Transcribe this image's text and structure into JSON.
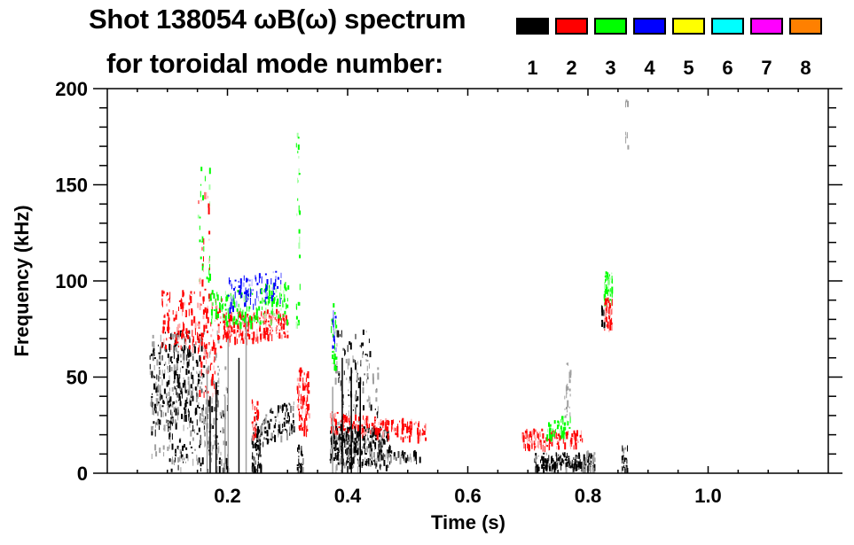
{
  "chart_data": {
    "type": "heatmap",
    "title_line1": "Shot 138054 ωB(ω) spectrum",
    "title_line2": "for toroidal mode number:",
    "xlabel": "Time (s)",
    "ylabel": "Frequency (kHz)",
    "xlim": [
      0.0,
      1.2
    ],
    "ylim": [
      0,
      200
    ],
    "x_ticks": [
      0.2,
      0.4,
      0.6,
      0.8,
      1.0
    ],
    "x_tick_labels": [
      "0.2",
      "0.4",
      "0.6",
      "0.8",
      "1.0"
    ],
    "x_minor_step": 0.05,
    "y_ticks": [
      0,
      50,
      100,
      150,
      200
    ],
    "y_tick_labels": [
      "0",
      "50",
      "100",
      "150",
      "200"
    ],
    "y_minor_step": 10,
    "legend": {
      "placement": "top-right",
      "entries": [
        {
          "label": "1",
          "color": "#000000"
        },
        {
          "label": "2",
          "color": "#ff0000"
        },
        {
          "label": "3",
          "color": "#00ff00"
        },
        {
          "label": "4",
          "color": "#0000ff"
        },
        {
          "label": "5",
          "color": "#ffff00"
        },
        {
          "label": "6",
          "color": "#00ffff"
        },
        {
          "label": "7",
          "color": "#ff00ff"
        },
        {
          "label": "8",
          "color": "#ff8000"
        }
      ]
    },
    "low_amplitude_color": "#a0a0a0",
    "features": [
      {
        "mode": 1,
        "t": [
          0.07,
          0.16
        ],
        "f": [
          25,
          75
        ],
        "density": 260,
        "f_slope": 150
      },
      {
        "mode": 1,
        "t": [
          0.1,
          0.2
        ],
        "f": [
          0,
          50
        ],
        "density": 160,
        "f_slope": 0
      },
      {
        "mode": 0,
        "t": [
          0.07,
          0.2
        ],
        "f": [
          5,
          75
        ],
        "density": 140,
        "f_slope": 0
      },
      {
        "mode": 2,
        "t": [
          0.09,
          0.19
        ],
        "f": [
          65,
          95
        ],
        "density": 170,
        "f_slope": -40
      },
      {
        "mode": 2,
        "t": [
          0.15,
          0.18
        ],
        "f": [
          40,
          70
        ],
        "density": 40,
        "f_slope": 0
      },
      {
        "mode": 2,
        "t": [
          0.19,
          0.3
        ],
        "f": [
          70,
          85
        ],
        "density": 230,
        "f_slope": 30
      },
      {
        "mode": 3,
        "t": [
          0.17,
          0.3
        ],
        "f": [
          78,
          98
        ],
        "density": 170,
        "f_slope": 60
      },
      {
        "mode": 4,
        "t": [
          0.2,
          0.29
        ],
        "f": [
          88,
          104
        ],
        "density": 90,
        "f_slope": 90
      },
      {
        "mode": 3,
        "t": [
          0.15,
          0.17
        ],
        "f": [
          100,
          160
        ],
        "density": 25,
        "f_slope": 0
      },
      {
        "mode": 2,
        "t": [
          0.15,
          0.17
        ],
        "f": [
          95,
          150
        ],
        "density": 20,
        "f_slope": 0
      },
      {
        "mode": 1,
        "t": [
          0.245,
          0.31
        ],
        "f": [
          18,
          35
        ],
        "density": 110,
        "f_slope": 250
      },
      {
        "mode": 1,
        "t": [
          0.24,
          0.255
        ],
        "f": [
          0,
          25
        ],
        "density": 70,
        "f_slope": 0
      },
      {
        "mode": 2,
        "t": [
          0.24,
          0.25
        ],
        "f": [
          20,
          40
        ],
        "density": 30,
        "f_slope": 0
      },
      {
        "mode": 2,
        "t": [
          0.315,
          0.335
        ],
        "f": [
          22,
          55
        ],
        "density": 90,
        "f_slope": -300
      },
      {
        "mode": 3,
        "t": [
          0.314,
          0.32
        ],
        "f": [
          60,
          190
        ],
        "density": 30,
        "f_slope": 0
      },
      {
        "mode": 1,
        "t": [
          0.315,
          0.325
        ],
        "f": [
          0,
          15
        ],
        "density": 25,
        "f_slope": 0
      },
      {
        "mode": 1,
        "t": [
          0.37,
          0.47
        ],
        "f": [
          5,
          25
        ],
        "density": 330,
        "f_slope": -40
      },
      {
        "mode": 1,
        "t": [
          0.38,
          0.45
        ],
        "f": [
          20,
          75
        ],
        "density": 90,
        "f_slope": 0
      },
      {
        "mode": 0,
        "t": [
          0.37,
          0.45
        ],
        "f": [
          0,
          60
        ],
        "density": 70,
        "f_slope": 0
      },
      {
        "mode": 2,
        "t": [
          0.37,
          0.53
        ],
        "f": [
          20,
          30
        ],
        "density": 180,
        "f_slope": -60
      },
      {
        "mode": 3,
        "t": [
          0.372,
          0.38
        ],
        "f": [
          55,
          90
        ],
        "density": 25,
        "f_slope": 0
      },
      {
        "mode": 4,
        "t": [
          0.374,
          0.38
        ],
        "f": [
          65,
          85
        ],
        "density": 12,
        "f_slope": 0
      },
      {
        "mode": 1,
        "t": [
          0.47,
          0.52
        ],
        "f": [
          8,
          12
        ],
        "density": 40,
        "f_slope": 0
      },
      {
        "mode": 2,
        "t": [
          0.69,
          0.79
        ],
        "f": [
          14,
          23
        ],
        "density": 130,
        "f_slope": -20
      },
      {
        "mode": 1,
        "t": [
          0.71,
          0.81
        ],
        "f": [
          3,
          11
        ],
        "density": 170,
        "f_slope": 0
      },
      {
        "mode": 3,
        "t": [
          0.73,
          0.77
        ],
        "f": [
          20,
          30
        ],
        "density": 45,
        "f_slope": 0
      },
      {
        "mode": 0,
        "t": [
          0.76,
          0.77
        ],
        "f": [
          30,
          60
        ],
        "density": 25,
        "f_slope": 0
      },
      {
        "mode": 0,
        "t": [
          0.79,
          0.81
        ],
        "f": [
          0,
          12
        ],
        "density": 30,
        "f_slope": 0
      },
      {
        "mode": 1,
        "t": [
          0.855,
          0.865
        ],
        "f": [
          0,
          15
        ],
        "density": 25,
        "f_slope": 0
      },
      {
        "mode": 3,
        "t": [
          0.826,
          0.84
        ],
        "f": [
          90,
          105
        ],
        "density": 50,
        "f_slope": 0
      },
      {
        "mode": 2,
        "t": [
          0.826,
          0.84
        ],
        "f": [
          75,
          92
        ],
        "density": 45,
        "f_slope": 0
      },
      {
        "mode": 1,
        "t": [
          0.822,
          0.826
        ],
        "f": [
          78,
          88
        ],
        "density": 10,
        "f_slope": 0
      },
      {
        "mode": 0,
        "t": [
          0.862,
          0.866
        ],
        "f": [
          170,
          195
        ],
        "density": 8,
        "f_slope": 0
      }
    ]
  }
}
